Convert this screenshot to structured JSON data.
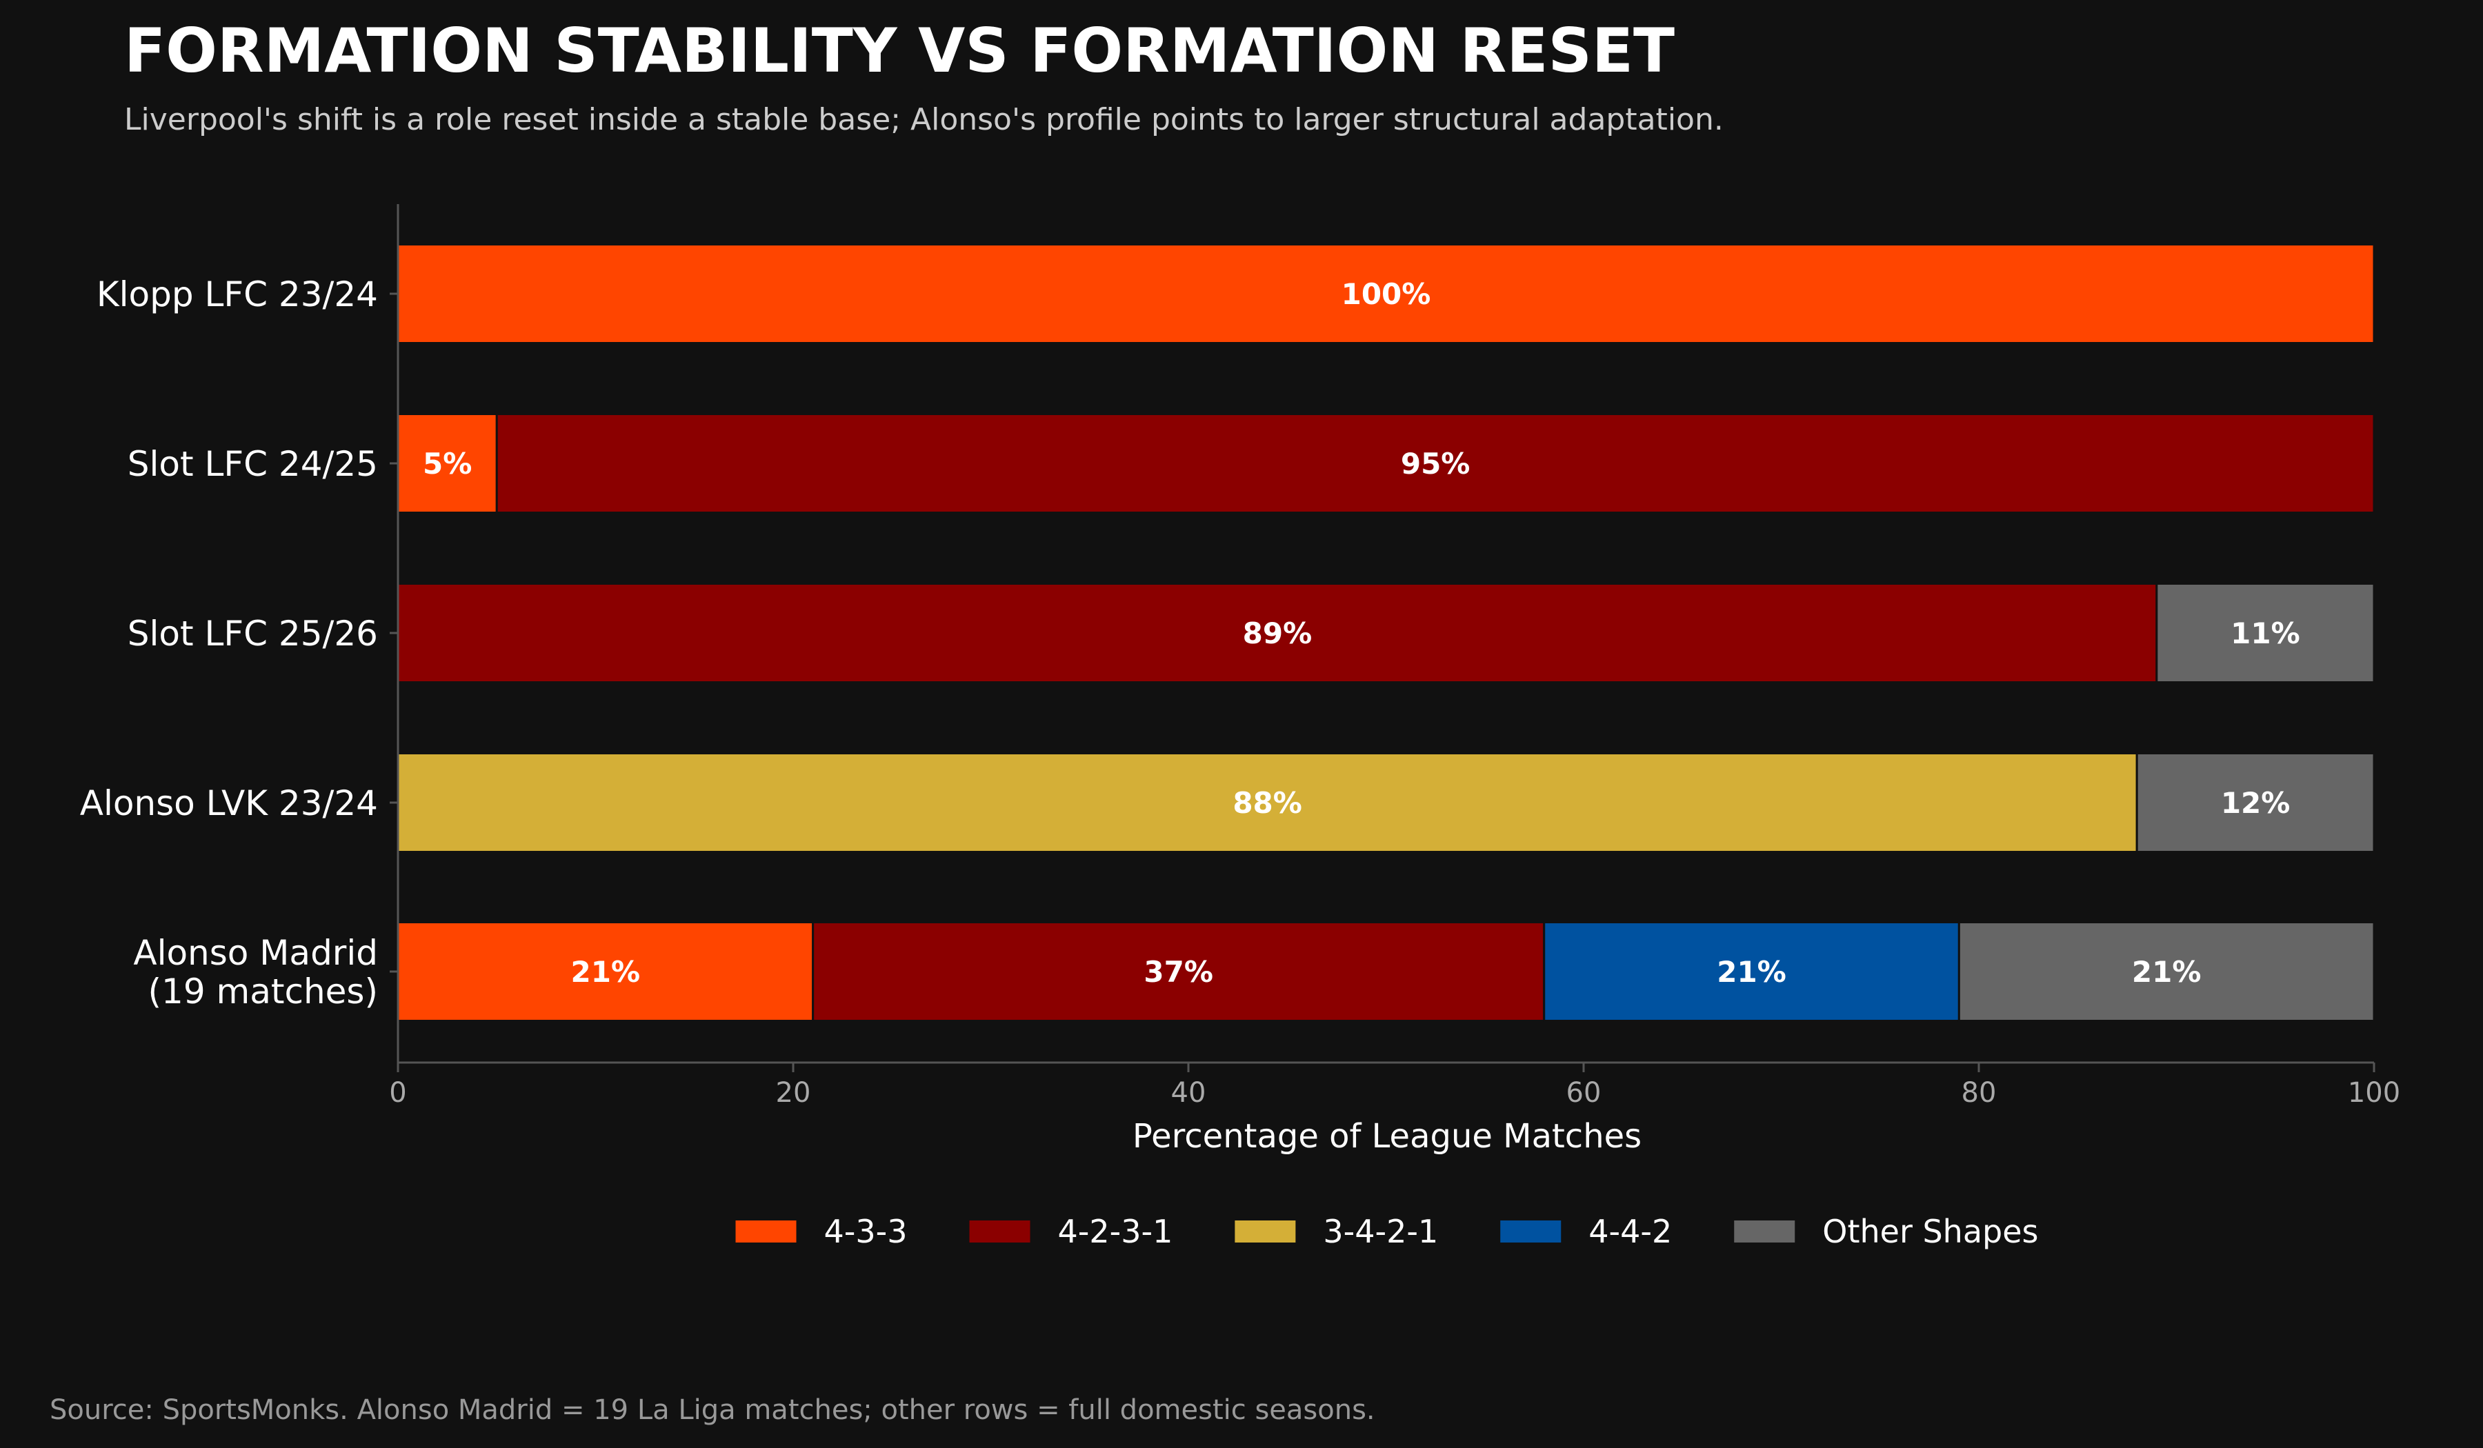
{
  "title": "FORMATION STABILITY VS FORMATION RESET",
  "subtitle": "Liverpool's shift is a role reset inside a stable base; Alonso's profile points to larger structural adaptation.",
  "source": "Source: SportsMonks. Alonso Madrid = 19 La Liga matches; other rows = full domestic seasons.",
  "chart_data": {
    "type": "bar",
    "orientation": "horizontal",
    "stacked": true,
    "categories": [
      "Klopp LFC 23/24",
      "Slot LFC 24/25",
      "Slot LFC 25/26",
      "Alonso LVK 23/24",
      "Alonso Madrid\n(19 matches)"
    ],
    "series": [
      {
        "name": "4-3-3",
        "color": "#ff4500",
        "values": [
          100,
          5,
          0,
          0,
          21
        ]
      },
      {
        "name": "4-2-3-1",
        "color": "#8b0000",
        "values": [
          0,
          95,
          89,
          0,
          37
        ]
      },
      {
        "name": "3-4-2-1",
        "color": "#d4af37",
        "values": [
          0,
          0,
          0,
          88,
          0
        ]
      },
      {
        "name": "4-4-2",
        "color": "#0052a0",
        "values": [
          0,
          0,
          0,
          0,
          21
        ]
      },
      {
        "name": "Other Shapes",
        "color": "#666666",
        "values": [
          0,
          0,
          11,
          12,
          21
        ]
      }
    ],
    "value_suffix": "%",
    "title": "FORMATION STABILITY VS FORMATION RESET",
    "xlabel": "Percentage of League Matches",
    "ylabel": "",
    "xlim": [
      0,
      100
    ],
    "xticks": [
      0,
      20,
      40,
      60,
      80,
      100
    ],
    "grid": false,
    "legend_placement": "bottom-center"
  }
}
